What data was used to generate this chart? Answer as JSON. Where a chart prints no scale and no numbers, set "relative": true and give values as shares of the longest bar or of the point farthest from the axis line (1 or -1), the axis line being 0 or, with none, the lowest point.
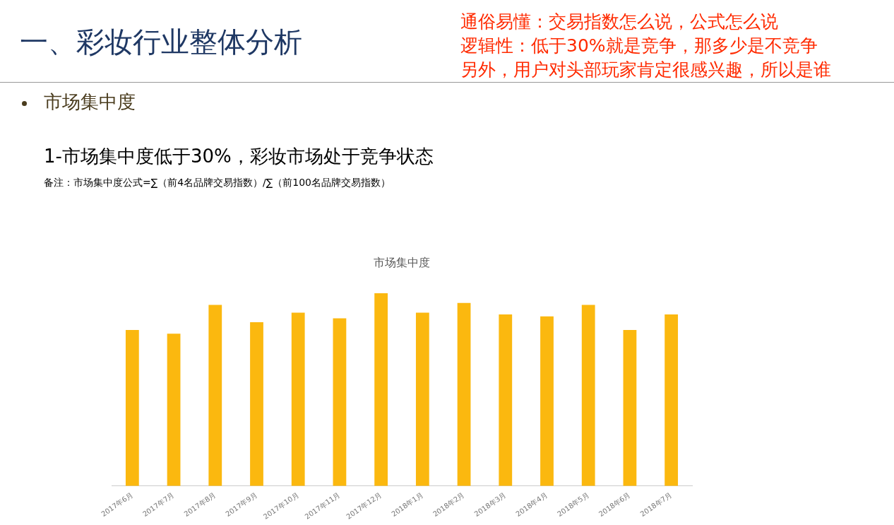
{
  "chart_data": {
    "type": "bar",
    "title": "市场集中度",
    "categories": [
      "2017年6月",
      "2017年7月",
      "2017年8月",
      "2017年9月",
      "2017年10月",
      "2017年11月",
      "2017年12月",
      "2018年1月",
      "2018年2月",
      "2018年3月",
      "2018年4月",
      "2018年5月",
      "2018年6月",
      "2018年7月"
    ],
    "values": [
      0.81,
      0.79,
      0.94,
      0.85,
      0.9,
      0.87,
      1,
      0.9,
      0.95,
      0.89,
      0.88,
      0.94,
      0.81,
      0.89
    ],
    "color": "#fbb80f",
    "relative": true,
    "grid": false,
    "legend": false,
    "annotations": [
      "一、彩妆行业整体分析",
      "通俗易懂：交易指数怎么说，公式怎么说",
      "逻辑性：低于30%就是竞争，那多少是不竞争",
      "另外，用户对头部玩家肯定很感兴趣，所以是谁",
      "市场集中度",
      "1-市场集中度低于30%，彩妆市场处于竞争状态",
      "备注：市场集中度公式=∑（前4名品牌交易指数）/∑（前100名品牌交易指数）"
    ]
  }
}
